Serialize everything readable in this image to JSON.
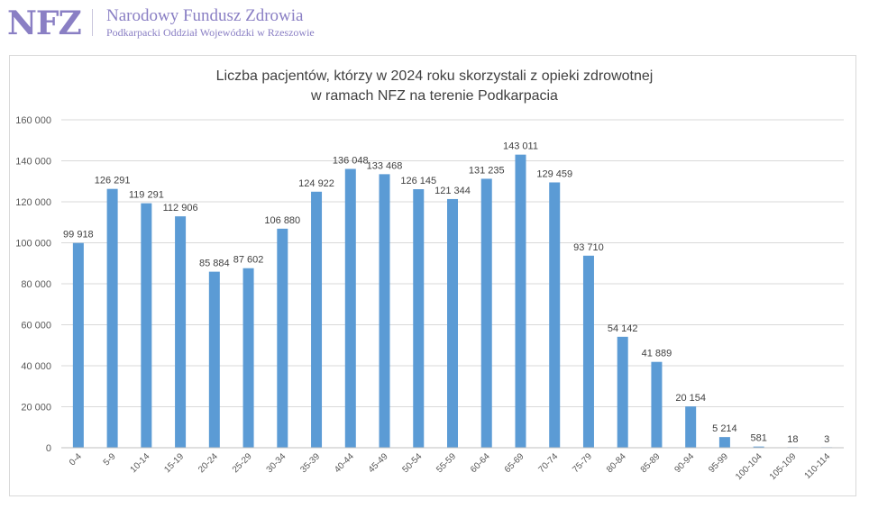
{
  "header": {
    "logo_text": "NFZ",
    "org_name": "Narodowy Fundusz Zdrowia",
    "org_branch": "Podkarpacki Oddział Wojewódzki w Rzeszowie",
    "brand_color": "#8a7fc4"
  },
  "chart_data": {
    "type": "bar",
    "title_line1": "Liczba pacjentów, którzy w 2024 roku skorzystali z opieki zdrowotnej",
    "title_line2": "w ramach NFZ na terenie Podkarpacia",
    "categories": [
      "0-4",
      "5-9",
      "10-14",
      "15-19",
      "20-24",
      "25-29",
      "30-34",
      "35-39",
      "40-44",
      "45-49",
      "50-54",
      "55-59",
      "60-64",
      "65-69",
      "70-74",
      "75-79",
      "80-84",
      "85-89",
      "90-94",
      "95-99",
      "100-104",
      "105-109",
      "110-114"
    ],
    "values": [
      99918,
      126291,
      119291,
      112906,
      85884,
      87602,
      106880,
      124922,
      136048,
      133468,
      126145,
      121344,
      131235,
      143011,
      129459,
      93710,
      54142,
      41889,
      20154,
      5214,
      581,
      18,
      3
    ],
    "data_labels": [
      "99 918",
      "126 291",
      "119 291",
      "112 906",
      "85 884",
      "87 602",
      "106 880",
      "124 922",
      "136 048",
      "133 468",
      "126 145",
      "121 344",
      "131 235",
      "143 011",
      "129 459",
      "93 710",
      "54 142",
      "41 889",
      "20 154",
      "5 214",
      "581",
      "18",
      "3"
    ],
    "y_ticks": [
      "0",
      "20 000",
      "40 000",
      "60 000",
      "80 000",
      "100 000",
      "120 000",
      "140 000",
      "160 000"
    ],
    "ylim": [
      0,
      160000
    ],
    "xlabel": "",
    "ylabel": "",
    "grid": true,
    "legend": "none",
    "bar_color": "#5b9bd5"
  }
}
